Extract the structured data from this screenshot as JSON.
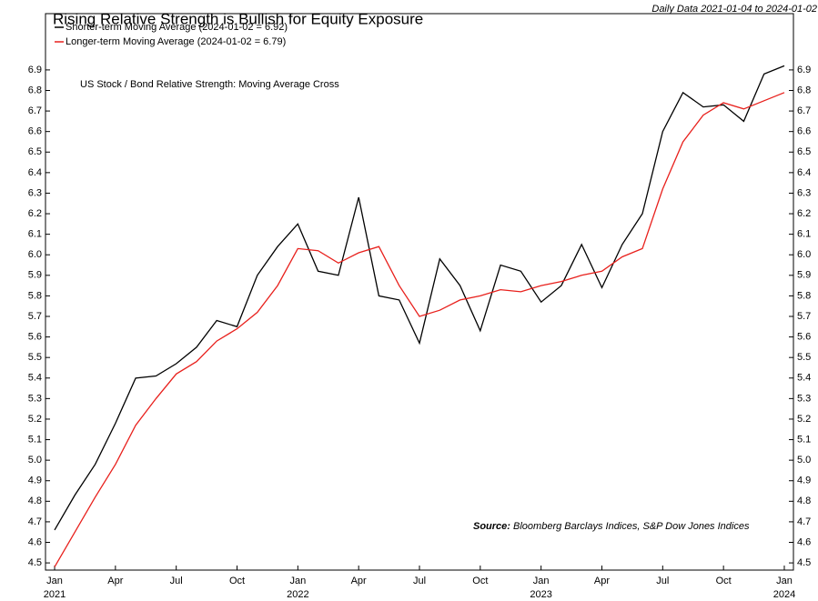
{
  "chart_data": {
    "type": "line",
    "title": "Rising Relative Strength is Bullish for Equity Exposure",
    "subtitle": "Daily Data 2021-01-04 to 2024-01-02",
    "annotation": "US Stock / Bond Relative Strength: Moving Average Cross",
    "source_label": "Source:",
    "source_text": "Bloomberg Barclays Indices, S&P Dow Jones Indices",
    "x": [
      "2021-01",
      "2021-02",
      "2021-03",
      "2021-04",
      "2021-05",
      "2021-06",
      "2021-07",
      "2021-08",
      "2021-09",
      "2021-10",
      "2021-11",
      "2021-12",
      "2022-01",
      "2022-02",
      "2022-03",
      "2022-04",
      "2022-05",
      "2022-06",
      "2022-07",
      "2022-08",
      "2022-09",
      "2022-10",
      "2022-11",
      "2022-12",
      "2023-01",
      "2023-02",
      "2023-03",
      "2023-04",
      "2023-05",
      "2023-06",
      "2023-07",
      "2023-08",
      "2023-09",
      "2023-10",
      "2023-11",
      "2023-12",
      "2024-01"
    ],
    "series": [
      {
        "name": "Shorter-term Moving Average (2024-01-02 = 6.92)",
        "color": "#000000",
        "values": [
          4.66,
          4.83,
          4.98,
          5.18,
          5.4,
          5.41,
          5.47,
          5.55,
          5.68,
          5.65,
          5.9,
          6.04,
          6.15,
          5.92,
          5.9,
          6.28,
          5.8,
          5.78,
          5.57,
          5.98,
          5.85,
          5.63,
          5.95,
          5.92,
          5.77,
          5.85,
          6.05,
          5.84,
          6.05,
          6.2,
          6.6,
          6.79,
          6.72,
          6.73,
          6.65,
          6.88,
          6.92
        ]
      },
      {
        "name": "Longer-term Moving Average (2024-01-02 = 6.79)",
        "color": "#e8201c",
        "values": [
          4.48,
          4.65,
          4.82,
          4.98,
          5.17,
          5.3,
          5.42,
          5.48,
          5.58,
          5.64,
          5.72,
          5.85,
          6.03,
          6.02,
          5.96,
          6.01,
          6.04,
          5.85,
          5.7,
          5.73,
          5.78,
          5.8,
          5.83,
          5.82,
          5.85,
          5.87,
          5.9,
          5.92,
          5.99,
          6.03,
          6.32,
          6.55,
          6.68,
          6.74,
          6.71,
          6.75,
          6.79
        ]
      }
    ],
    "ylim": [
      4.465,
      7.174
    ],
    "yticks": [
      4.5,
      4.6,
      4.7,
      4.8,
      4.9,
      {
        "value": 5,
        "label": "5.0"
      },
      5.1,
      5.2,
      5.3,
      5.4,
      5.5,
      5.6,
      5.7,
      5.8,
      5.9,
      {
        "value": 6,
        "label": "6.0"
      },
      6.1,
      6.2,
      6.3,
      6.4,
      6.5,
      6.6,
      6.7,
      6.8,
      6.9
    ],
    "xticks": [
      {
        "value": "2021-01",
        "label": "Jan"
      },
      {
        "value": "2021-04",
        "label": "Apr"
      },
      {
        "value": "2021-07",
        "label": "Jul"
      },
      {
        "value": "2021-10",
        "label": "Oct"
      },
      {
        "value": "2022-01",
        "label": "Jan"
      },
      {
        "value": "2022-04",
        "label": "Apr"
      },
      {
        "value": "2022-07",
        "label": "Jul"
      },
      {
        "value": "2022-10",
        "label": "Oct"
      },
      {
        "value": "2023-01",
        "label": "Jan"
      },
      {
        "value": "2023-04",
        "label": "Apr"
      },
      {
        "value": "2023-07",
        "label": "Jul"
      },
      {
        "value": "2023-10",
        "label": "Oct"
      },
      {
        "value": "2024-01",
        "label": "Jan"
      }
    ],
    "year_labels": [
      {
        "value": "2021-01",
        "label": "2021"
      },
      {
        "value": "2022-01",
        "label": "2022"
      },
      {
        "value": "2023-01",
        "label": "2023"
      },
      {
        "value": "2024-01",
        "label": "2024"
      }
    ],
    "legend": "upper left",
    "grid": false
  }
}
